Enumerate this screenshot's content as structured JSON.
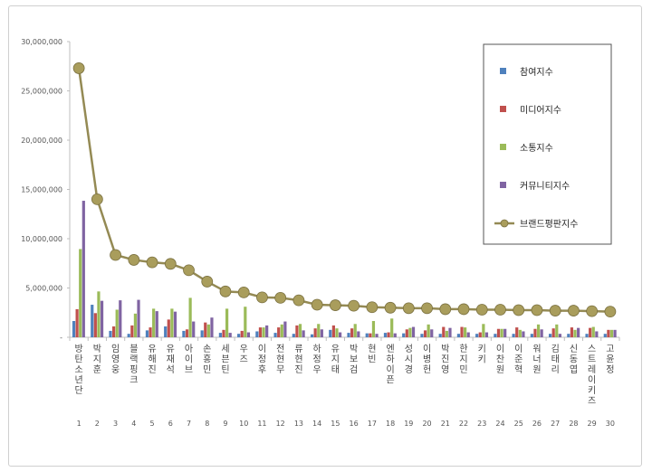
{
  "chart_data": {
    "type": "bar",
    "title": "",
    "xlabel": "",
    "ylabel": "",
    "ylim": [
      0,
      30000000
    ],
    "yticks": [
      0,
      5000000,
      10000000,
      15000000,
      20000000,
      25000000,
      30000000
    ],
    "ytick_labels": [
      "-",
      "5,000,000",
      "10,000,000",
      "15,000,000",
      "20,000,000",
      "25,000,000",
      "30,000,000"
    ],
    "grid": false,
    "legend_position": "top-right",
    "index_labels": [
      "1",
      "2",
      "3",
      "4",
      "5",
      "6",
      "7",
      "8",
      "9",
      "10",
      "11",
      "12",
      "13",
      "14",
      "15",
      "16",
      "17",
      "18",
      "19",
      "20",
      "21",
      "22",
      "23",
      "24",
      "25",
      "26",
      "27",
      "28",
      "29",
      "30"
    ],
    "categories": [
      "방탄소년단",
      "박지훈",
      "임영웅",
      "블랙핑크",
      "유해진",
      "유재석",
      "아이브",
      "손흥민",
      "세븐틴",
      "우즈",
      "이정후",
      "전현무",
      "류현진",
      "하정우",
      "유지태",
      "박보검",
      "현빈",
      "엔하이픈",
      "성시경",
      "이병헌",
      "박진영",
      "한지민",
      "키키",
      "이찬원",
      "이준혁",
      "워너원",
      "김태리",
      "신동엽",
      "스트레이키즈",
      "고윤정"
    ],
    "series": [
      {
        "name": "참여지수",
        "type": "bar",
        "color": "#4f81bd",
        "values": [
          1650000,
          3300000,
          650000,
          350000,
          700000,
          1100000,
          650000,
          700000,
          450000,
          350000,
          600000,
          450000,
          350000,
          300000,
          750000,
          450000,
          400000,
          450000,
          400000,
          350000,
          350000,
          350000,
          350000,
          350000,
          350000,
          350000,
          350000,
          350000,
          350000,
          350000
        ]
      },
      {
        "name": "미디어지수",
        "type": "bar",
        "color": "#c0504d",
        "values": [
          2850000,
          2450000,
          1100000,
          1200000,
          1000000,
          1800000,
          800000,
          1500000,
          750000,
          650000,
          1000000,
          1000000,
          1200000,
          900000,
          1200000,
          900000,
          400000,
          500000,
          800000,
          700000,
          1050000,
          1050000,
          500000,
          850000,
          1000000,
          850000,
          900000,
          1000000,
          950000,
          750000
        ]
      },
      {
        "name": "소통지수",
        "type": "bar",
        "color": "#9bbb59",
        "values": [
          8950000,
          4650000,
          2800000,
          2400000,
          2900000,
          2900000,
          4000000,
          1300000,
          2900000,
          3100000,
          1000000,
          1300000,
          1350000,
          1350000,
          900000,
          1350000,
          1650000,
          1900000,
          950000,
          1300000,
          650000,
          1000000,
          1350000,
          850000,
          750000,
          1300000,
          1300000,
          750000,
          1050000,
          750000
        ]
      },
      {
        "name": "커뮤니티지수",
        "type": "bar",
        "color": "#8064a2",
        "values": [
          13850000,
          3700000,
          3750000,
          3800000,
          2650000,
          2600000,
          1600000,
          2000000,
          450000,
          500000,
          1200000,
          1600000,
          700000,
          800000,
          500000,
          600000,
          350000,
          400000,
          1050000,
          800000,
          950000,
          500000,
          500000,
          850000,
          600000,
          800000,
          350000,
          950000,
          600000,
          750000
        ]
      },
      {
        "name": "브랜드평판지수",
        "type": "line",
        "color": "#948a54",
        "values": [
          27300000,
          14000000,
          8350000,
          7850000,
          7600000,
          7450000,
          6800000,
          5650000,
          4650000,
          4550000,
          4050000,
          4000000,
          3750000,
          3300000,
          3250000,
          3200000,
          3050000,
          3000000,
          2950000,
          2950000,
          2850000,
          2850000,
          2800000,
          2800000,
          2750000,
          2750000,
          2700000,
          2700000,
          2650000,
          2600000
        ]
      }
    ]
  }
}
